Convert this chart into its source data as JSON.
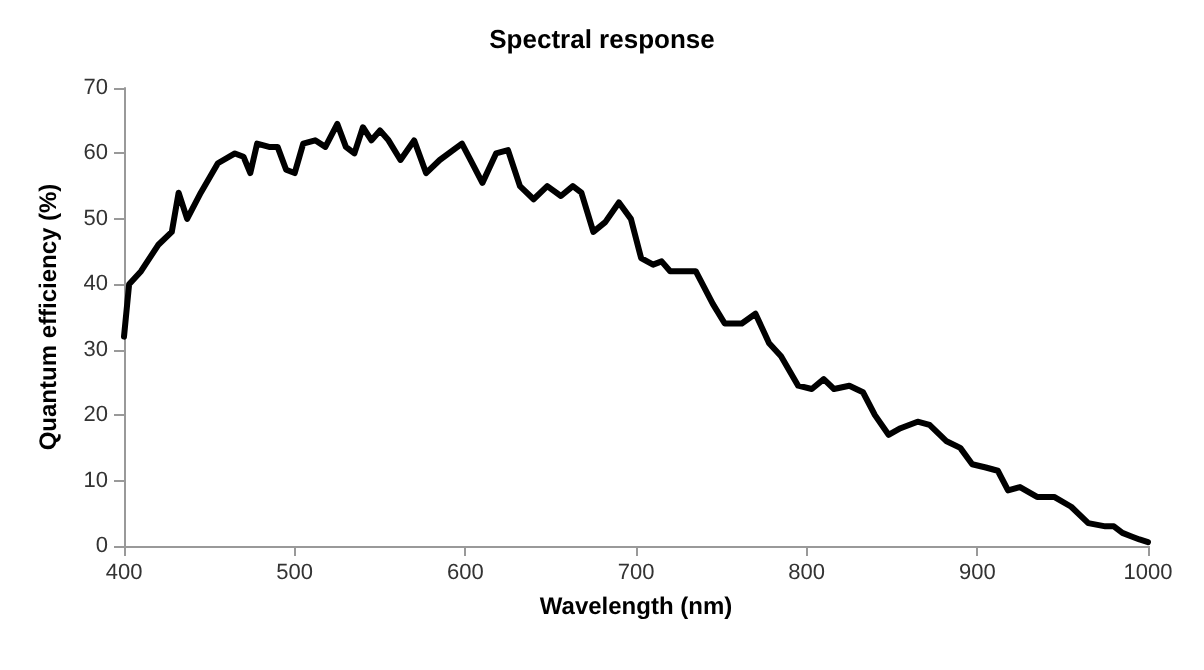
{
  "chart_data": {
    "type": "line",
    "title": "Spectral response",
    "xlabel": "Wavelength (nm)",
    "ylabel": "Quantum efficiency (%)",
    "x": [
      400,
      403,
      410,
      420,
      428,
      432,
      437,
      445,
      455,
      465,
      470,
      474,
      478,
      485,
      490,
      495,
      500,
      505,
      512,
      518,
      525,
      530,
      535,
      540,
      545,
      550,
      555,
      562,
      570,
      577,
      585,
      598,
      603,
      610,
      618,
      625,
      632,
      640,
      648,
      656,
      663,
      668,
      675,
      682,
      690,
      697,
      703,
      710,
      715,
      720,
      735,
      745,
      752,
      762,
      770,
      778,
      785,
      795,
      803,
      810,
      816,
      825,
      833,
      840,
      848,
      855,
      865,
      872,
      882,
      890,
      897,
      905,
      912,
      918,
      925,
      935,
      945,
      955,
      965,
      975,
      980,
      985,
      990,
      995,
      1000
    ],
    "series": [
      {
        "color": "#000000",
        "values": [
          32,
          40,
          42,
          46,
          48,
          54,
          50,
          54,
          58.5,
          60,
          59.5,
          57,
          61.5,
          61,
          61,
          57.5,
          57,
          61.5,
          62,
          61,
          64.5,
          61,
          60,
          64,
          62,
          63.5,
          62,
          59,
          62,
          57,
          59,
          61.5,
          59,
          55.5,
          60,
          60.5,
          55,
          53,
          55,
          53.5,
          55,
          54,
          48,
          49.5,
          52.5,
          50,
          44,
          43,
          43.5,
          42,
          42,
          37,
          34,
          34,
          35.5,
          31,
          29,
          24.5,
          24,
          25.5,
          24,
          24.5,
          23.5,
          20,
          17,
          18,
          19,
          18.5,
          16,
          15,
          12.5,
          12,
          11.5,
          8.5,
          9,
          7.5,
          7.5,
          6,
          3.5,
          3,
          3,
          2,
          1.5,
          1,
          0.6
        ]
      }
    ],
    "xlim": [
      400,
      1000
    ],
    "xticks": [
      400,
      500,
      600,
      700,
      800,
      900,
      1000
    ],
    "ylim": [
      0,
      70
    ],
    "yticks": [
      0,
      10,
      20,
      30,
      40,
      50,
      60,
      70
    ],
    "grid": false,
    "marker": "none",
    "line_style": "solid"
  }
}
